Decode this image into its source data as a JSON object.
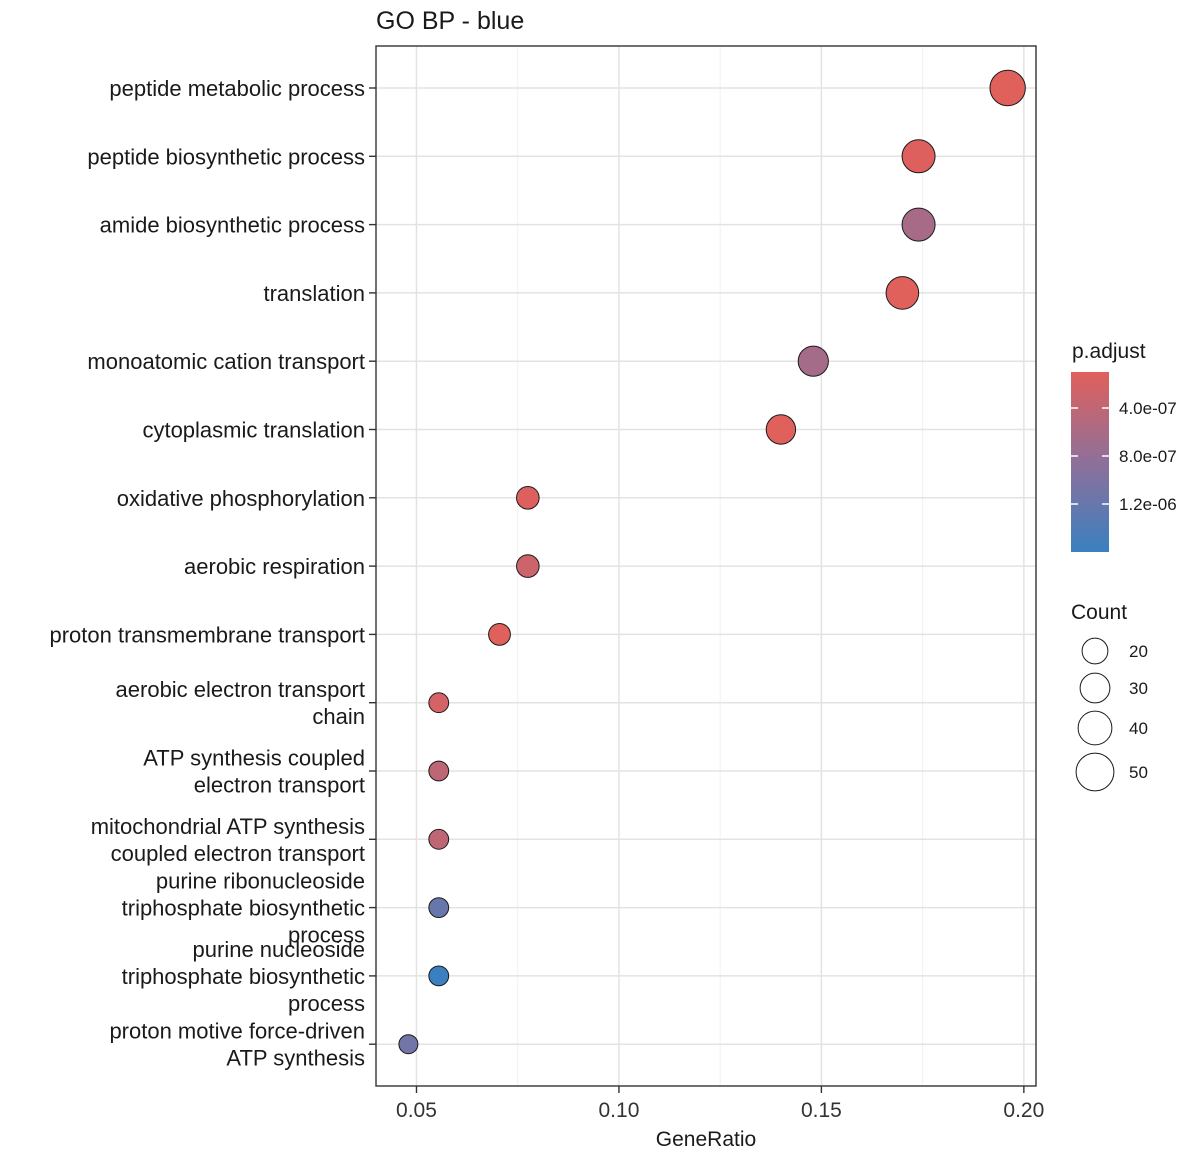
{
  "chart_data": {
    "type": "scatter",
    "title": "GO BP - blue",
    "xlabel": "GeneRatio",
    "ylabel": "",
    "xlim": [
      0.04,
      0.203
    ],
    "x_ticks": [
      {
        "value": 0.05,
        "label": "0.05"
      },
      {
        "value": 0.1,
        "label": "0.10"
      },
      {
        "value": 0.15,
        "label": "0.15"
      },
      {
        "value": 0.2,
        "label": "0.20"
      }
    ],
    "grid": true,
    "points": [
      {
        "category_lines": [
          "peptide metabolic process"
        ],
        "gene_ratio": 0.196,
        "count": 54,
        "p_adjust": 1e-07
      },
      {
        "category_lines": [
          "peptide biosynthetic process"
        ],
        "gene_ratio": 0.174,
        "count": 48,
        "p_adjust": 1.2e-07
      },
      {
        "category_lines": [
          "amide biosynthetic process"
        ],
        "gene_ratio": 0.174,
        "count": 48,
        "p_adjust": 6.2e-07
      },
      {
        "category_lines": [
          "translation"
        ],
        "gene_ratio": 0.17,
        "count": 47,
        "p_adjust": 1e-07
      },
      {
        "category_lines": [
          "monoatomic cation transport"
        ],
        "gene_ratio": 0.148,
        "count": 41,
        "p_adjust": 6.5e-07
      },
      {
        "category_lines": [
          "cytoplasmic translation"
        ],
        "gene_ratio": 0.14,
        "count": 39,
        "p_adjust": 1e-07
      },
      {
        "category_lines": [
          "oxidative phosphorylation"
        ],
        "gene_ratio": 0.0775,
        "count": 22,
        "p_adjust": 1.2e-07
      },
      {
        "category_lines": [
          "aerobic respiration"
        ],
        "gene_ratio": 0.0775,
        "count": 22,
        "p_adjust": 2.8e-07
      },
      {
        "category_lines": [
          "proton transmembrane transport"
        ],
        "gene_ratio": 0.0705,
        "count": 20,
        "p_adjust": 1e-07
      },
      {
        "category_lines": [
          "aerobic electron transport",
          "chain"
        ],
        "gene_ratio": 0.0555,
        "count": 15,
        "p_adjust": 2e-07
      },
      {
        "category_lines": [
          "ATP synthesis coupled",
          "electron transport"
        ],
        "gene_ratio": 0.0555,
        "count": 15,
        "p_adjust": 4e-07
      },
      {
        "category_lines": [
          "mitochondrial ATP synthesis",
          "coupled electron transport"
        ],
        "gene_ratio": 0.0555,
        "count": 15,
        "p_adjust": 4e-07
      },
      {
        "category_lines": [
          "purine ribonucleoside",
          "triphosphate biosynthetic",
          "process"
        ],
        "gene_ratio": 0.0555,
        "count": 15,
        "p_adjust": 1.2e-06
      },
      {
        "category_lines": [
          "purine nucleoside",
          "triphosphate biosynthetic",
          "process"
        ],
        "gene_ratio": 0.0555,
        "count": 15,
        "p_adjust": 1.6e-06
      },
      {
        "category_lines": [
          "proton motive force-driven",
          "ATP synthesis"
        ],
        "gene_ratio": 0.048,
        "count": 13,
        "p_adjust": 1.1e-06
      }
    ],
    "color_legend": {
      "title": "p.adjust",
      "min": 1e-07,
      "max": 1.6e-06,
      "low_color": "#e0605c",
      "high_color": "#3a80c0",
      "ticks": [
        {
          "value": 4e-07,
          "label": "4.0e-07"
        },
        {
          "value": 8e-07,
          "label": "8.0e-07"
        },
        {
          "value": 1.2e-06,
          "label": "1.2e-06"
        }
      ]
    },
    "size_legend": {
      "title": "Count",
      "entries": [
        {
          "value": 20,
          "label": "20"
        },
        {
          "value": 30,
          "label": "30"
        },
        {
          "value": 40,
          "label": "40"
        },
        {
          "value": 50,
          "label": "50"
        }
      ]
    },
    "legend_placement": "right"
  }
}
